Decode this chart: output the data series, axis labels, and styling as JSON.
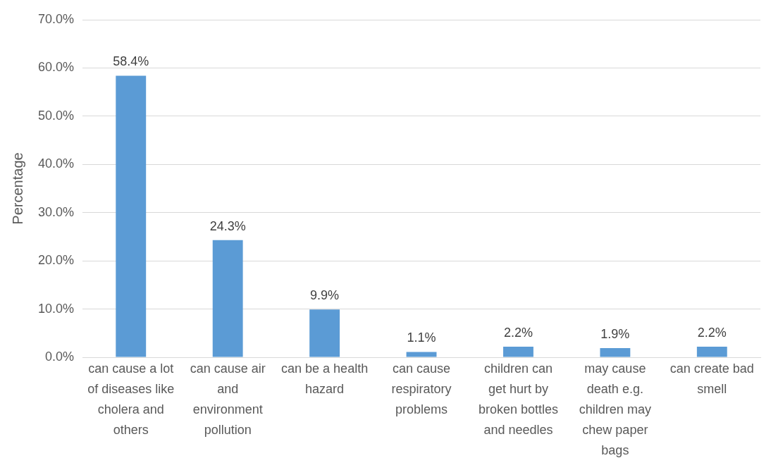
{
  "chart_data": {
    "type": "bar",
    "ylabel": "Percentage",
    "categories": [
      "can cause a lot of diseases like cholera and others",
      "can cause air and environment pollution",
      "can be a health hazard",
      "can cause respiratory problems",
      "children can get hurt by broken bottles and needles",
      "may cause death e.g. children may chew paper bags",
      "can create bad smell"
    ],
    "values": [
      58.4,
      24.3,
      9.9,
      1.1,
      2.2,
      1.9,
      2.2
    ],
    "value_labels": [
      "58.4%",
      "24.3%",
      "9.9%",
      "1.1%",
      "2.2%",
      "1.9%",
      "2.2%"
    ],
    "color": "#5b9bd5",
    "ylim": [
      0,
      70
    ],
    "yticks": [
      {
        "value": 0,
        "label": "0.0%"
      },
      {
        "value": 10,
        "label": "10.0%"
      },
      {
        "value": 20,
        "label": "20.0%"
      },
      {
        "value": 30,
        "label": "30.0%"
      },
      {
        "value": 40,
        "label": "40.0%"
      },
      {
        "value": 50,
        "label": "50.0%"
      },
      {
        "value": 60,
        "label": "60.0%"
      },
      {
        "value": 70,
        "label": "70.0%"
      }
    ],
    "grid": "y",
    "legend": false
  }
}
